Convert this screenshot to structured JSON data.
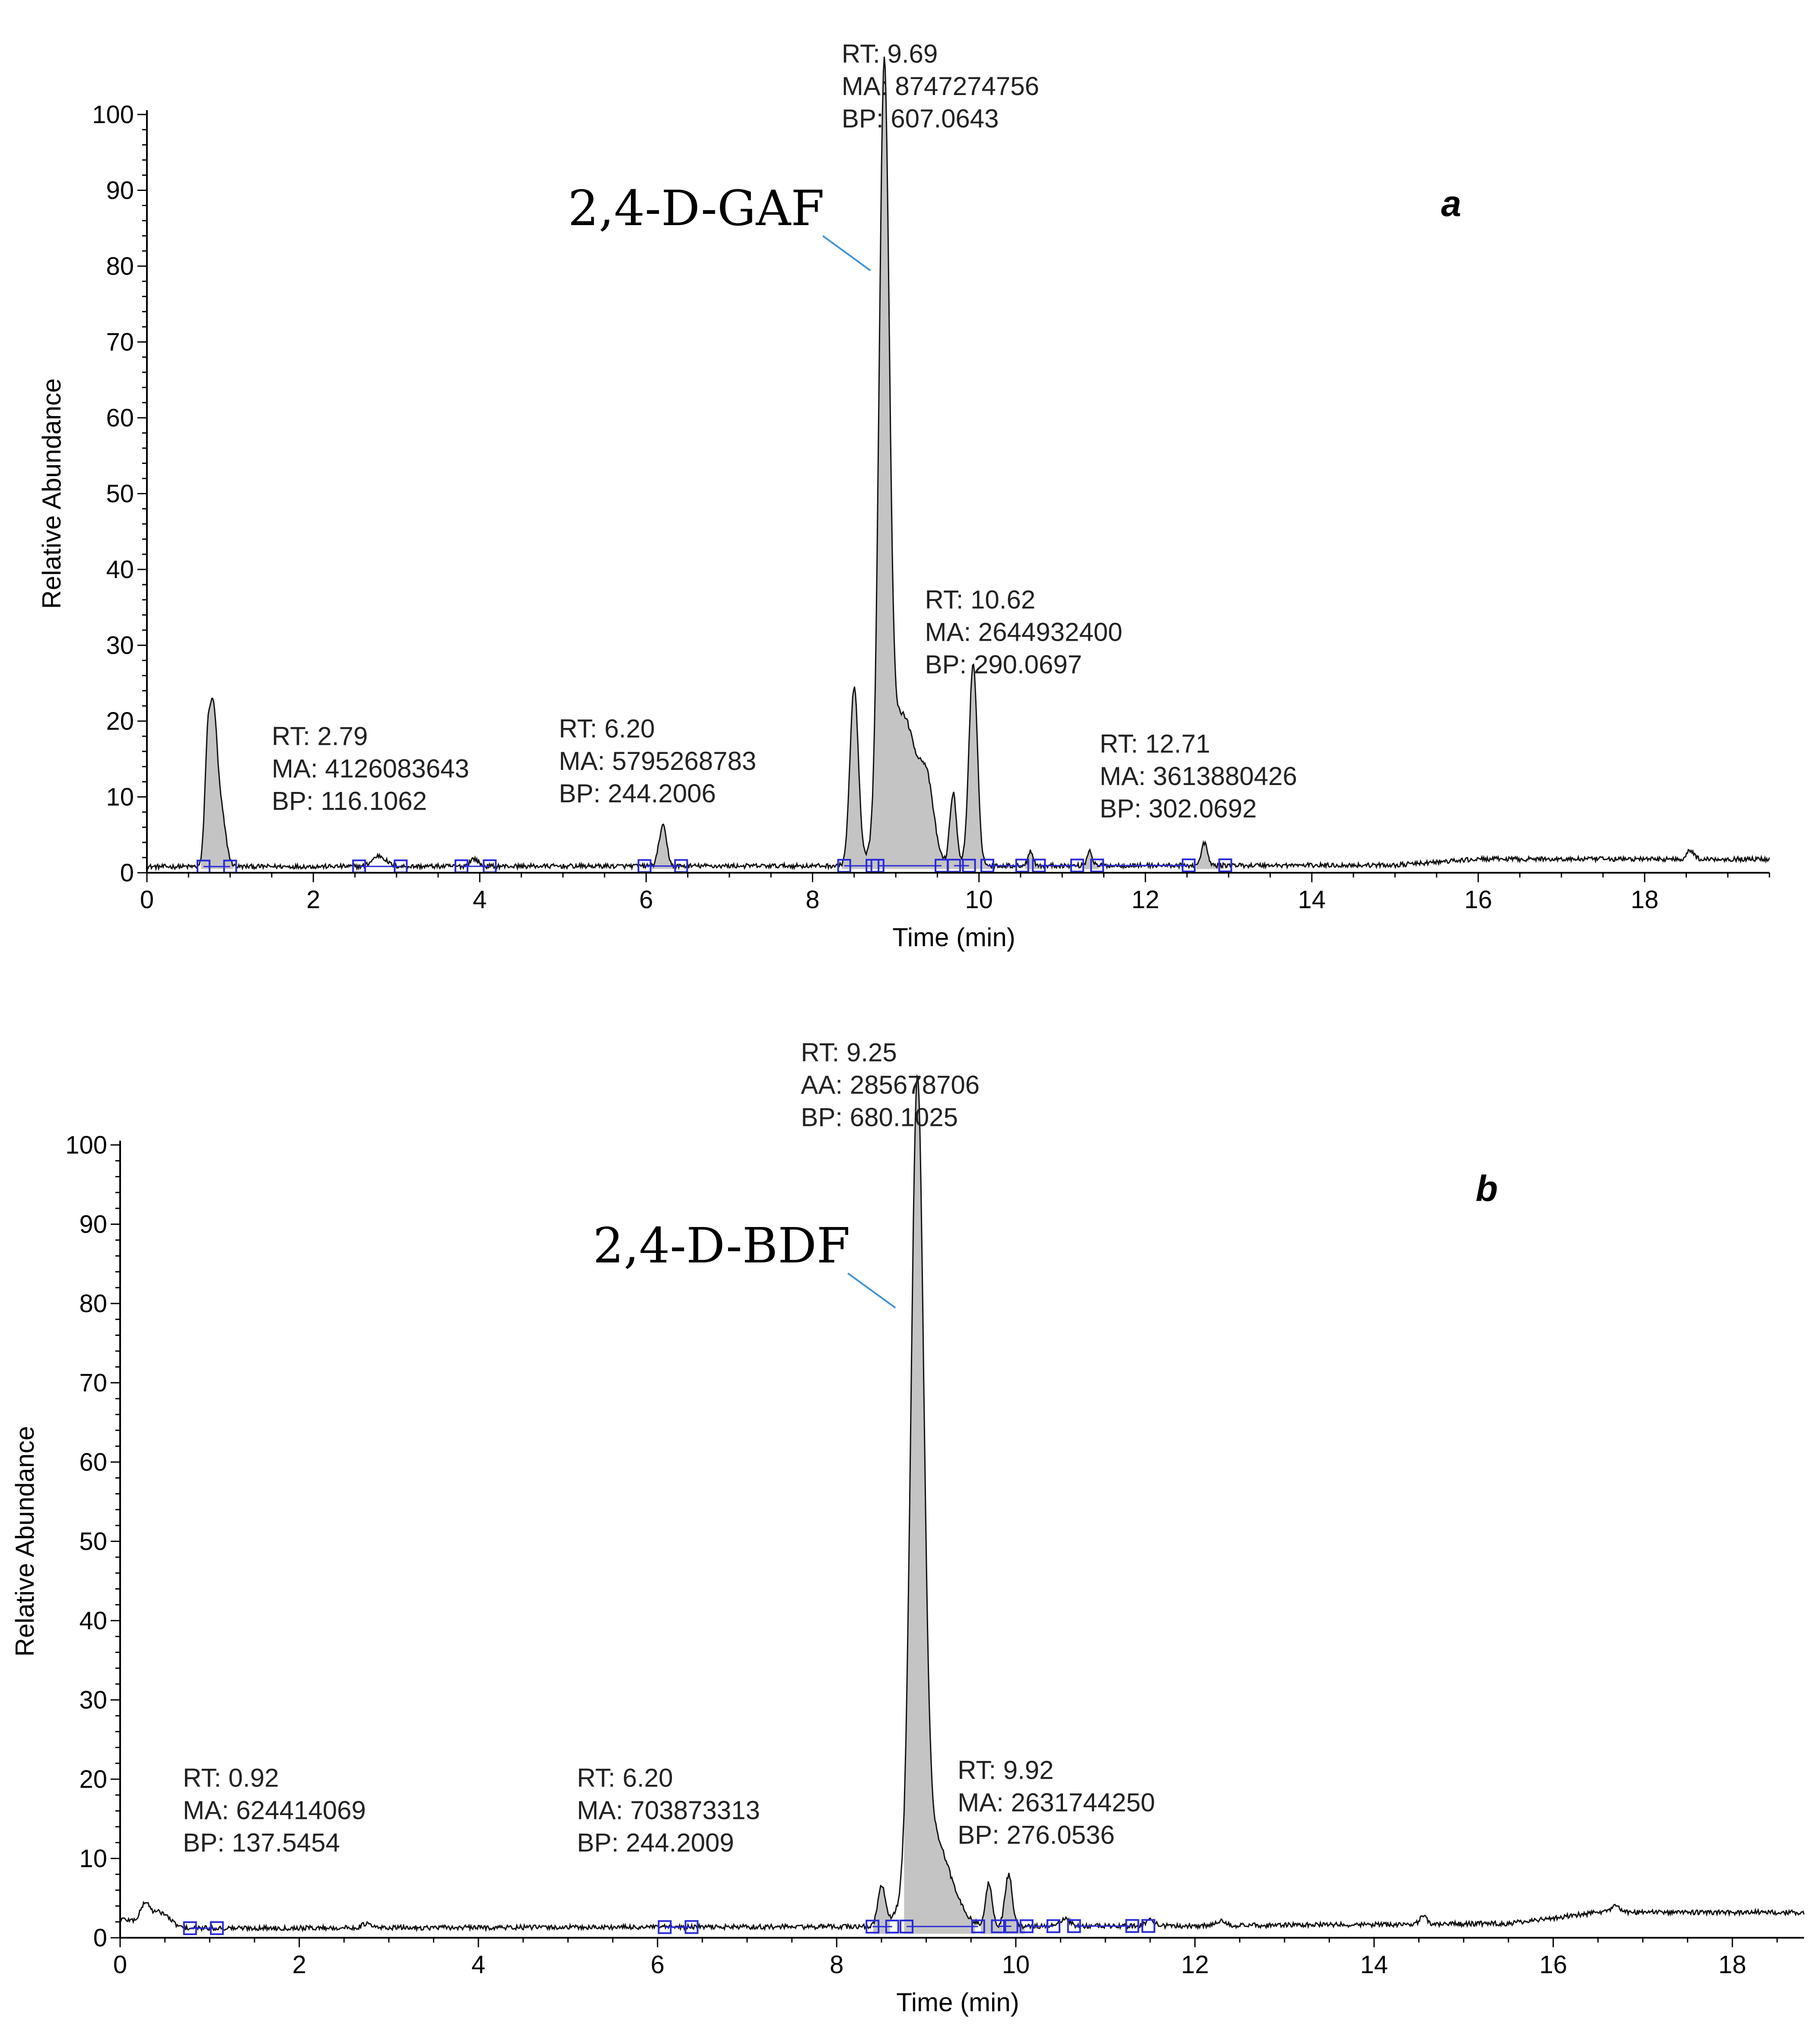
{
  "colors": {
    "trace": "#111111",
    "fill": "#c4c4c4",
    "marker": "#2a2ad8",
    "pointer": "#3f93d8",
    "baseline": "#2a2ad8",
    "green_tick": "#3fbf3f"
  },
  "chart_data": [
    {
      "type": "area",
      "panel": "a",
      "xlabel": "Time (min)",
      "ylabel": "Relative Abundance",
      "xlim": [
        0,
        19.5
      ],
      "ylim": [
        0,
        100
      ],
      "xticks": [
        0,
        2,
        4,
        6,
        8,
        10,
        12,
        14,
        16,
        18
      ],
      "yticks": [
        0,
        10,
        20,
        30,
        40,
        50,
        60,
        70,
        80,
        90,
        100
      ],
      "compound_label": "2,4-D-GAF",
      "compound_target": {
        "x": 8.85,
        "y": 80
      },
      "baseline": 1.0,
      "noise": 0.3,
      "drift": [
        [
          0,
          0.8
        ],
        [
          15,
          1.0
        ],
        [
          16,
          1.8
        ],
        [
          19.4,
          1.8
        ]
      ],
      "peaks": [
        {
          "rt": 0.73,
          "h": 15.0,
          "w": 0.035
        },
        {
          "rt": 0.8,
          "h": 16.5,
          "w": 0.04
        },
        {
          "rt": 0.88,
          "h": 8.0,
          "w": 0.06
        },
        {
          "rt": 2.79,
          "h": 1.4,
          "w": 0.08
        },
        {
          "rt": 3.93,
          "h": 1.0,
          "w": 0.05
        },
        {
          "rt": 6.2,
          "h": 5.3,
          "w": 0.045
        },
        {
          "rt": 8.5,
          "h": 23.5,
          "w": 0.05
        },
        {
          "rt": 8.86,
          "h": 97.0,
          "w": 0.06
        },
        {
          "rt": 9.08,
          "h": 20.0,
          "w": 0.18
        },
        {
          "rt": 9.38,
          "h": 7.5,
          "w": 0.08
        },
        {
          "rt": 9.69,
          "h": 9.5,
          "w": 0.04
        },
        {
          "rt": 9.93,
          "h": 26.5,
          "w": 0.05
        },
        {
          "rt": 10.62,
          "h": 2.0,
          "w": 0.03
        },
        {
          "rt": 11.33,
          "h": 2.0,
          "w": 0.03
        },
        {
          "rt": 12.71,
          "h": 3.0,
          "w": 0.035
        },
        {
          "rt": 18.55,
          "h": 1.2,
          "w": 0.04
        }
      ],
      "filled": [
        [
          0.65,
          1.05
        ],
        [
          6.05,
          6.35
        ],
        [
          8.35,
          10.2
        ],
        [
          10.55,
          10.75
        ],
        [
          11.25,
          11.45
        ],
        [
          12.6,
          12.95
        ]
      ],
      "markers": [
        0.68,
        1.0,
        2.55,
        3.05,
        3.78,
        4.12,
        5.98,
        6.42,
        8.38,
        8.72,
        8.78,
        9.55,
        9.7,
        9.88,
        10.1,
        10.52,
        10.72,
        11.18,
        11.42,
        12.52,
        12.96
      ],
      "annotations": [
        {
          "lines": [
            "RT: 9.69",
            "MA: 8747274756",
            "BP: 607.0643"
          ],
          "x": 8.35,
          "y": 100
        },
        {
          "lines": [
            "RT: 10.62",
            "MA: 2644932400",
            "BP: 290.0697"
          ],
          "x": 9.35,
          "y": 28
        },
        {
          "lines": [
            "RT: 2.79",
            "MA: 4126083643",
            "BP: 116.1062"
          ],
          "x": 1.5,
          "y": 10
        },
        {
          "lines": [
            "RT: 6.20",
            "MA: 5795268783",
            "BP: 244.2006"
          ],
          "x": 4.95,
          "y": 11
        },
        {
          "lines": [
            "RT: 12.71",
            "MA: 3613880426",
            "BP: 302.0692"
          ],
          "x": 11.45,
          "y": 9
        }
      ]
    },
    {
      "type": "area",
      "panel": "b",
      "xlabel": "Time (min)",
      "ylabel": "Relative Abundance",
      "xlim": [
        0,
        18.8
      ],
      "ylim": [
        0,
        100
      ],
      "xticks": [
        0,
        2,
        4,
        6,
        8,
        10,
        12,
        14,
        16,
        18
      ],
      "yticks": [
        0,
        10,
        20,
        30,
        40,
        50,
        60,
        70,
        80,
        90,
        100
      ],
      "compound_label": "2,4-D-BDF",
      "compound_target": {
        "x": 8.8,
        "y": 80
      },
      "baseline": 1.2,
      "noise": 0.3,
      "drift": [
        [
          0,
          2.4
        ],
        [
          0.7,
          1.2
        ],
        [
          12,
          1.5
        ],
        [
          15.5,
          1.8
        ],
        [
          16.5,
          3.2
        ],
        [
          18.8,
          3.2
        ]
      ],
      "peaks": [
        {
          "rt": 0.28,
          "h": 2.2,
          "w": 0.05
        },
        {
          "rt": 0.45,
          "h": 1.6,
          "w": 0.1
        },
        {
          "rt": 2.75,
          "h": 0.5,
          "w": 0.05
        },
        {
          "rt": 8.5,
          "h": 5.0,
          "w": 0.04
        },
        {
          "rt": 8.9,
          "h": 98.5,
          "w": 0.07
        },
        {
          "rt": 9.05,
          "h": 12.0,
          "w": 0.2
        },
        {
          "rt": 9.7,
          "h": 5.5,
          "w": 0.035
        },
        {
          "rt": 9.92,
          "h": 6.5,
          "w": 0.04
        },
        {
          "rt": 10.55,
          "h": 1.0,
          "w": 0.05
        },
        {
          "rt": 11.5,
          "h": 0.8,
          "w": 0.05
        },
        {
          "rt": 12.3,
          "h": 0.6,
          "w": 0.06
        },
        {
          "rt": 14.55,
          "h": 1.0,
          "w": 0.04
        },
        {
          "rt": 16.7,
          "h": 0.8,
          "w": 0.05
        }
      ],
      "filled": [
        [
          8.4,
          8.6
        ],
        [
          8.75,
          9.55
        ],
        [
          9.6,
          9.85
        ],
        [
          9.85,
          10.1
        ]
      ],
      "markers": [
        0.78,
        1.08,
        6.08,
        6.38,
        8.4,
        8.62,
        8.78,
        9.58,
        9.8,
        9.95,
        10.12,
        10.42,
        10.65,
        11.3,
        11.48
      ],
      "annotations": [
        {
          "lines": [
            "RT: 9.25",
            "AA: 285678706",
            "BP: 680.1025"
          ],
          "x": 7.6,
          "y": 104
        },
        {
          "lines": [
            "RT: 9.92",
            "MA: 2631744250",
            "BP: 276.0536"
          ],
          "x": 9.35,
          "y": 13.5
        },
        {
          "lines": [
            "RT: 0.92",
            "MA: 624414069",
            "BP: 137.5454"
          ],
          "x": 0.7,
          "y": 12.5
        },
        {
          "lines": [
            "RT: 6.20",
            "MA: 703873313",
            "BP: 244.2009"
          ],
          "x": 5.1,
          "y": 12.5
        }
      ]
    }
  ]
}
